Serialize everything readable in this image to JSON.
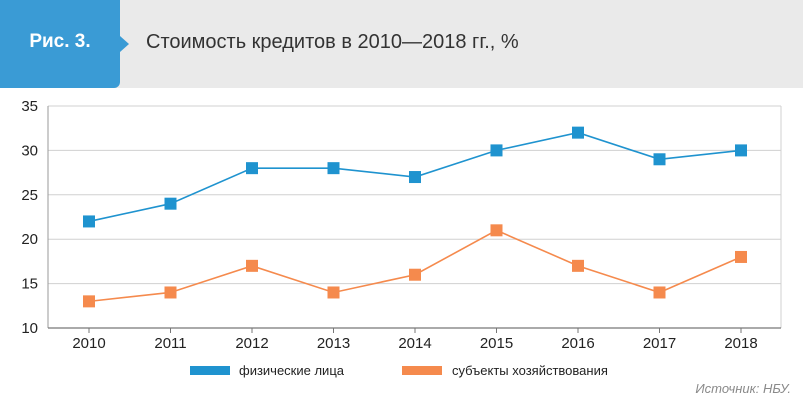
{
  "figure": {
    "label": "Рис. 3.",
    "title": "Стоимость кредитов в 2010—2018 гг., %"
  },
  "source": "Источник: НБУ.",
  "colors": {
    "accent": "#3a9bd5",
    "series1": "#1f93cf",
    "series2": "#f58a4d",
    "header_bg": "#eaeaea"
  },
  "chart_data": {
    "type": "line",
    "title": "Стоимость кредитов в 2010—2018 гг., %",
    "xlabel": "",
    "ylabel": "",
    "categories": [
      "2010",
      "2011",
      "2012",
      "2013",
      "2014",
      "2015",
      "2016",
      "2017",
      "2018"
    ],
    "ylim": [
      10,
      35
    ],
    "yticks": [
      10,
      15,
      20,
      25,
      30,
      35
    ],
    "grid": true,
    "legend_position": "bottom",
    "series": [
      {
        "name": "физические лица",
        "color": "#1f93cf",
        "values": [
          22,
          24,
          28,
          28,
          27,
          30,
          32,
          29,
          30
        ]
      },
      {
        "name": "субъекты хозяйствования",
        "color": "#f58a4d",
        "values": [
          13,
          14,
          17,
          14,
          16,
          21,
          17,
          14,
          18
        ]
      }
    ]
  }
}
